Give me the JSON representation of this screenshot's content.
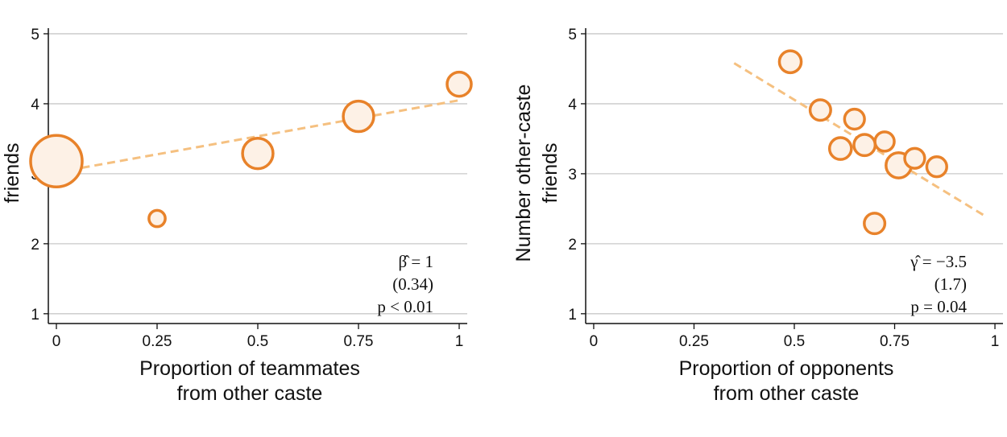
{
  "chart_data": [
    {
      "type": "scatter",
      "y_label": [
        "friends"
      ],
      "x_label": [
        "Proportion of teammates",
        "from other caste"
      ],
      "x": [
        0,
        0.25,
        0.5,
        0.75,
        1
      ],
      "values": [
        3.18,
        2.36,
        3.29,
        3.82,
        4.28
      ],
      "sizes": [
        100,
        10,
        35,
        35,
        22
      ],
      "color": "#e8822a",
      "fill": "#fdf1e6",
      "fit_line": {
        "x": [
          0,
          1
        ],
        "y": [
          3.02,
          4.05
        ],
        "color": "#f5c080"
      },
      "annotation": [
        "β̂ = 1",
        "(0.34)",
        "p < 0.01"
      ],
      "xlim": [
        -0.02,
        1.02
      ],
      "xticks": [
        0,
        0.25,
        0.5,
        0.75,
        1
      ],
      "ylim": [
        0.86,
        5.08
      ],
      "yticks": [
        1,
        2,
        3,
        4,
        5
      ],
      "grid": true
    },
    {
      "type": "scatter",
      "y_label": [
        "Number other-caste",
        "friends"
      ],
      "x_label": [
        "Proportion of opponents",
        "from other caste"
      ],
      "x": [
        0.49,
        0.565,
        0.65,
        0.615,
        0.675,
        0.725,
        0.76,
        0.8,
        0.855,
        0.7
      ],
      "values": [
        4.6,
        3.91,
        3.78,
        3.36,
        3.41,
        3.46,
        3.12,
        3.22,
        3.1,
        2.29
      ],
      "sizes": [
        18,
        16,
        15,
        18,
        17,
        14,
        24,
        15,
        15,
        16
      ],
      "color": "#e8822a",
      "fill": "#fdf1e6",
      "fit_line": {
        "x": [
          0.35,
          0.98
        ],
        "y": [
          4.58,
          2.38
        ],
        "color": "#f5c080"
      },
      "annotation": [
        "γ̂ = −3.5",
        "(1.7)",
        "p = 0.04"
      ],
      "xlim": [
        -0.02,
        1.02
      ],
      "xticks": [
        0,
        0.25,
        0.5,
        0.75,
        1
      ],
      "ylim": [
        0.86,
        5.08
      ],
      "yticks": [
        1,
        2,
        3,
        4,
        5
      ],
      "grid": true
    }
  ]
}
